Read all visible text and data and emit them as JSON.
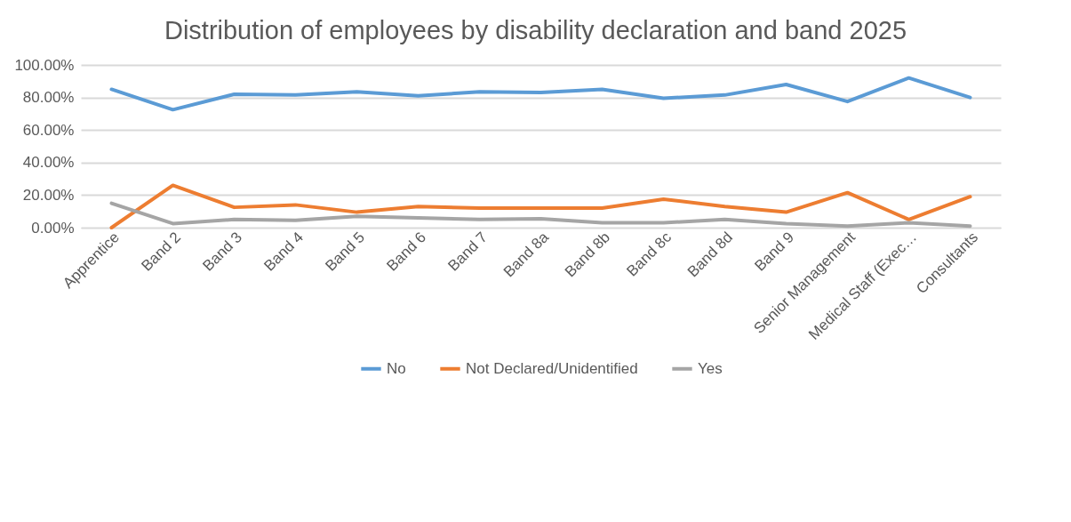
{
  "chart_data": {
    "type": "line",
    "title": "Distribution of employees by disability declaration and band 2025",
    "categories": [
      "Apprentice",
      "Band 2",
      "Band 3",
      "Band 4",
      "Band 5",
      "Band 6",
      "Band 7",
      "Band 8a",
      "Band 8b",
      "Band 8c",
      "Band 8d",
      "Band 9",
      "Senior Management",
      "Medical Staff (Exec…",
      "Consultants"
    ],
    "series": [
      {
        "name": "No",
        "color": "#5b9bd5",
        "values": [
          85,
          72.5,
          82,
          81.5,
          83.5,
          81,
          83.5,
          83,
          85,
          79.5,
          81.5,
          88,
          77.5,
          92,
          80
        ]
      },
      {
        "name": "Not Declared/Unidentified",
        "color": "#ed7d31",
        "values": [
          0,
          26,
          12.5,
          14,
          9.5,
          13,
          12,
          12,
          12,
          17.5,
          13,
          9.5,
          21.5,
          5,
          19
        ]
      },
      {
        "name": "Yes",
        "color": "#a5a5a5",
        "values": [
          15,
          2.5,
          5,
          4.5,
          7,
          6,
          5,
          5.5,
          3,
          3,
          5,
          2.5,
          1,
          3,
          1
        ]
      }
    ],
    "ylim": [
      0,
      100
    ],
    "yticks": [
      {
        "value": 0,
        "label": "0.00%"
      },
      {
        "value": 20,
        "label": "20.00%"
      },
      {
        "value": 40,
        "label": "40.00%"
      },
      {
        "value": 60,
        "label": "60.00%"
      },
      {
        "value": 80,
        "label": "80.00%"
      },
      {
        "value": 100,
        "label": "100.00%"
      }
    ],
    "grid": "y",
    "legend": "bottom",
    "marker": "none",
    "line_style": "solid"
  }
}
